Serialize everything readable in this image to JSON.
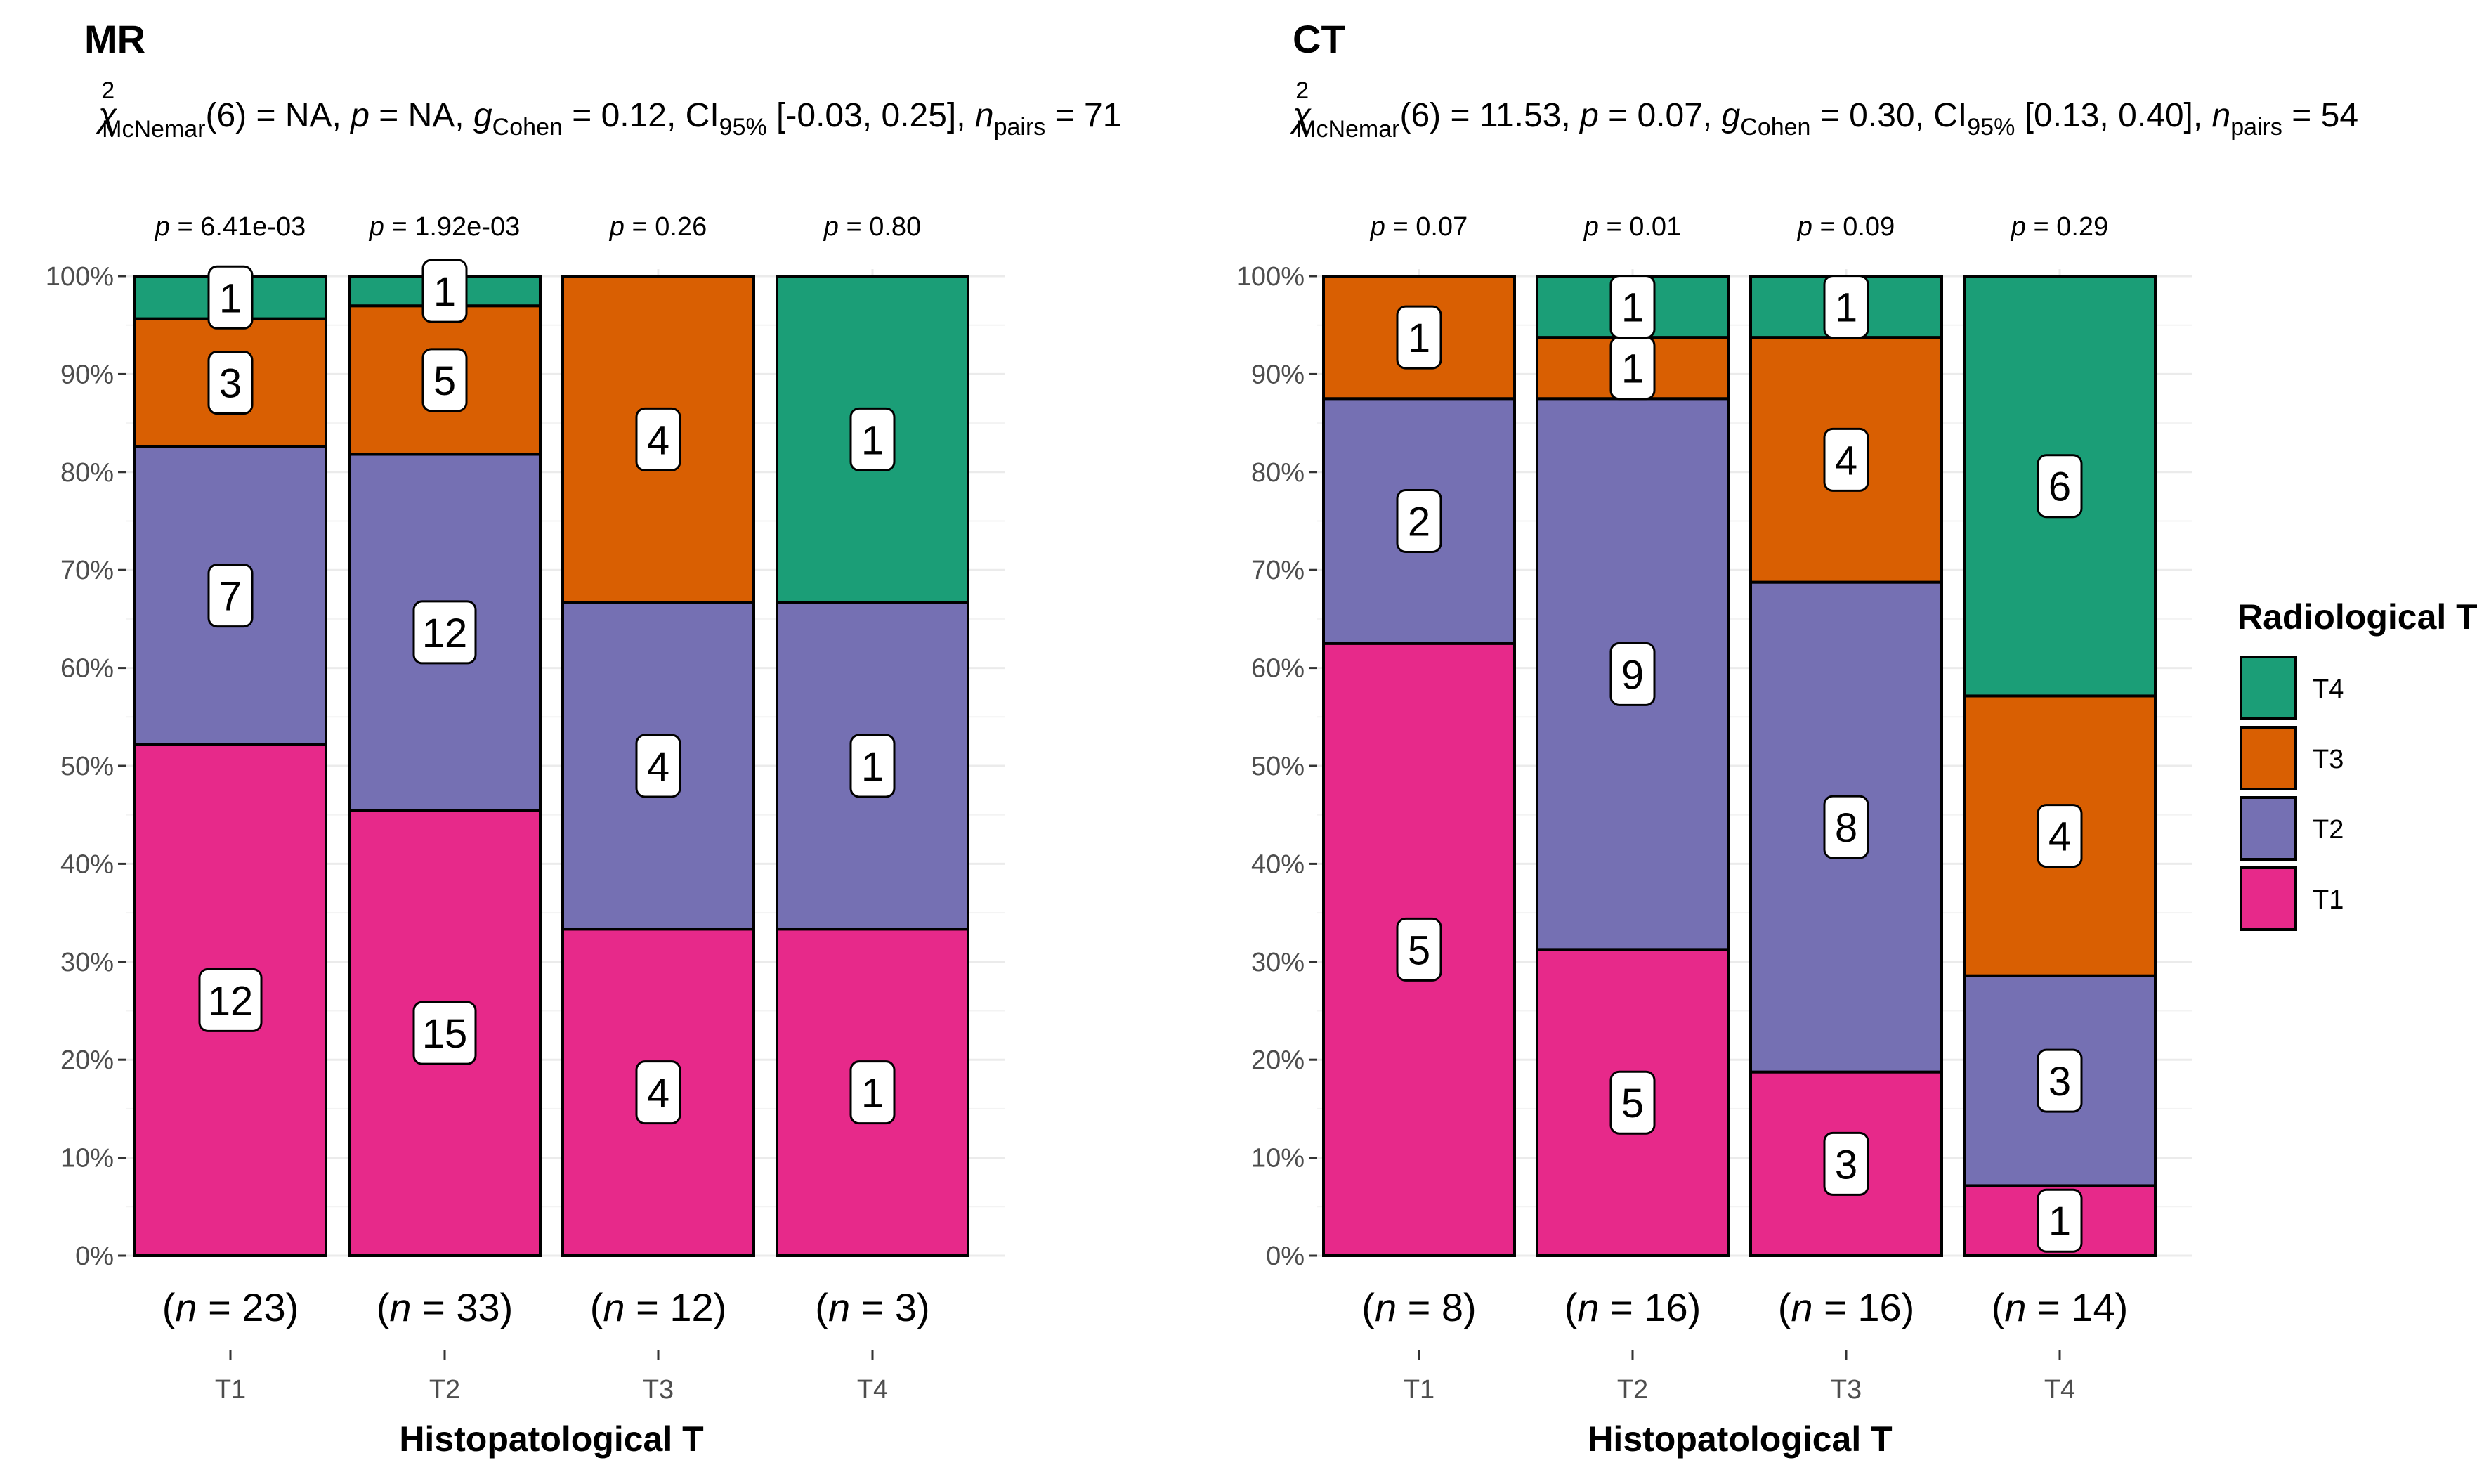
{
  "chart_data": [
    {
      "type": "bar",
      "stacked": true,
      "percent": true,
      "title": "MR",
      "subtitle": {
        "stat": "χ",
        "stat_sup": "2",
        "stat_sub": "McNemar",
        "df": "(6) = NA, ",
        "p_label": "p",
        "p_val": " = NA, ",
        "g_label": "g",
        "g_sub": "Cohen",
        "g_val": " = 0.12, CI",
        "ci_sub": "95%",
        "ci_val": " [-0.03, 0.25], ",
        "n_label": "n",
        "n_sub": "pairs",
        "n_val": " = 71"
      },
      "categories": [
        "T1",
        "T2",
        "T3",
        "T4"
      ],
      "p_values": [
        "6.41e-03",
        "1.92e-03",
        "0.26",
        "0.80"
      ],
      "n_values": [
        "23",
        "33",
        "12",
        "3"
      ],
      "series": [
        {
          "name": "T1",
          "values": [
            12,
            15,
            4,
            1
          ]
        },
        {
          "name": "T2",
          "values": [
            7,
            12,
            4,
            1
          ]
        },
        {
          "name": "T3",
          "values": [
            3,
            5,
            4,
            0
          ]
        },
        {
          "name": "T4",
          "values": [
            1,
            1,
            0,
            1
          ]
        }
      ],
      "xlabel": "Histopatological T",
      "ylabel": "",
      "ylim": [
        0,
        100
      ],
      "yticks": [
        "0%",
        "10%",
        "20%",
        "30%",
        "40%",
        "50%",
        "60%",
        "70%",
        "80%",
        "90%",
        "100%"
      ]
    },
    {
      "type": "bar",
      "stacked": true,
      "percent": true,
      "title": "CT",
      "subtitle": {
        "stat": "χ",
        "stat_sup": "2",
        "stat_sub": "McNemar",
        "df": "(6) = 11.53, ",
        "p_label": "p",
        "p_val": " = 0.07, ",
        "g_label": "g",
        "g_sub": "Cohen",
        "g_val": " = 0.30, CI",
        "ci_sub": "95%",
        "ci_val": " [0.13, 0.40], ",
        "n_label": "n",
        "n_sub": "pairs",
        "n_val": " = 54"
      },
      "categories": [
        "T1",
        "T2",
        "T3",
        "T4"
      ],
      "p_values": [
        "0.07",
        "0.01",
        "0.09",
        "0.29"
      ],
      "n_values": [
        "8",
        "16",
        "16",
        "14"
      ],
      "series": [
        {
          "name": "T1",
          "values": [
            5,
            5,
            3,
            1
          ]
        },
        {
          "name": "T2",
          "values": [
            2,
            9,
            8,
            3
          ]
        },
        {
          "name": "T3",
          "values": [
            1,
            1,
            4,
            4
          ]
        },
        {
          "name": "T4",
          "values": [
            0,
            1,
            1,
            6
          ]
        }
      ],
      "xlabel": "Histopatological T",
      "ylabel": "",
      "ylim": [
        0,
        100
      ],
      "yticks": [
        "0%",
        "10%",
        "20%",
        "30%",
        "40%",
        "50%",
        "60%",
        "70%",
        "80%",
        "90%",
        "100%"
      ]
    }
  ],
  "legend": {
    "title": "Radiological T",
    "placement": "right",
    "items": [
      {
        "name": "T4",
        "color": "#1b9e77"
      },
      {
        "name": "T3",
        "color": "#d95f02"
      },
      {
        "name": "T2",
        "color": "#7570b3"
      },
      {
        "name": "T1",
        "color": "#e7298a"
      }
    ]
  },
  "colors": {
    "T1": "#e7298a",
    "T2": "#7570b3",
    "T3": "#d95f02",
    "T4": "#1b9e77",
    "grid": "#ebebeb"
  }
}
